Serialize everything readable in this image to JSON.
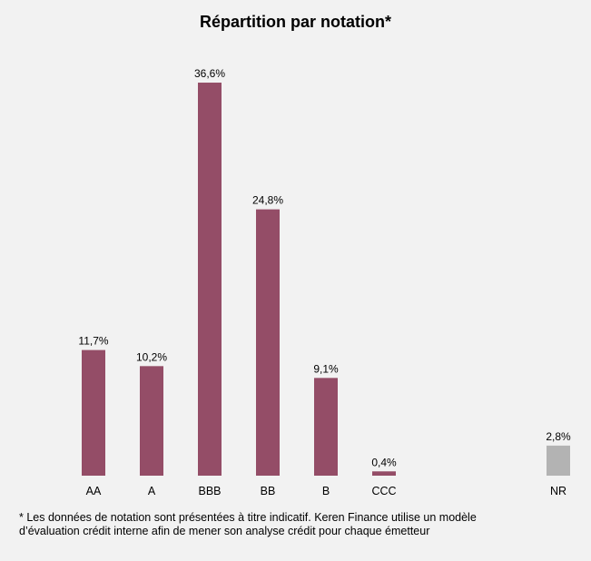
{
  "chart_data": {
    "type": "bar",
    "title": "Répartition par notation*",
    "categories": [
      "AA",
      "A",
      "BBB",
      "BB",
      "B",
      "CCC",
      "NR"
    ],
    "values": [
      11.7,
      10.2,
      36.6,
      24.8,
      9.1,
      0.4,
      2.8
    ],
    "value_labels": [
      "11,7%",
      "10,2%",
      "36,6%",
      "24,8%",
      "9,1%",
      "0,4%",
      "2,8%"
    ],
    "bar_colors": [
      "#944d67",
      "#944d67",
      "#944d67",
      "#944d67",
      "#944d67",
      "#944d67",
      "#b3b3b3"
    ],
    "xlabel": "",
    "ylabel": "",
    "grid": false,
    "legend": "none"
  },
  "footnote": {
    "line1": "* Les données de notation sont présentées à titre indicatif. Keren Finance utilise un modèle",
    "line2": "d’évaluation crédit interne afin de mener son analyse crédit pour chaque émetteur"
  },
  "colors": {
    "background": "#f2f2f2",
    "rated_bar": "#944d67",
    "unrated_bar": "#b3b3b3"
  }
}
